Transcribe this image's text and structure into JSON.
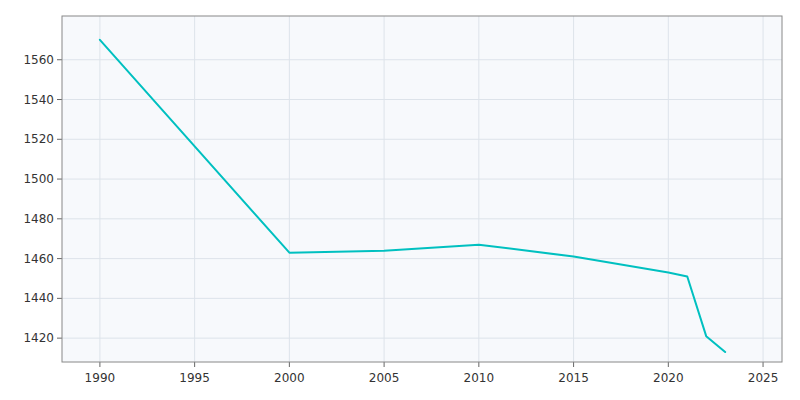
{
  "chart_data": {
    "type": "line",
    "x": [
      1990,
      2000,
      2005,
      2010,
      2015,
      2020,
      2021,
      2022,
      2023
    ],
    "values": [
      1570,
      1463,
      1464,
      1467,
      1461,
      1453,
      1451,
      1421,
      1413
    ],
    "color": "#00C0C0",
    "xlim": [
      1988,
      2026
    ],
    "ylim": [
      1408,
      1582
    ],
    "xticks": [
      1990,
      1995,
      2000,
      2005,
      2010,
      2015,
      2020,
      2025
    ],
    "yticks": [
      1420,
      1440,
      1460,
      1480,
      1500,
      1520,
      1540,
      1560
    ],
    "grid": true
  }
}
